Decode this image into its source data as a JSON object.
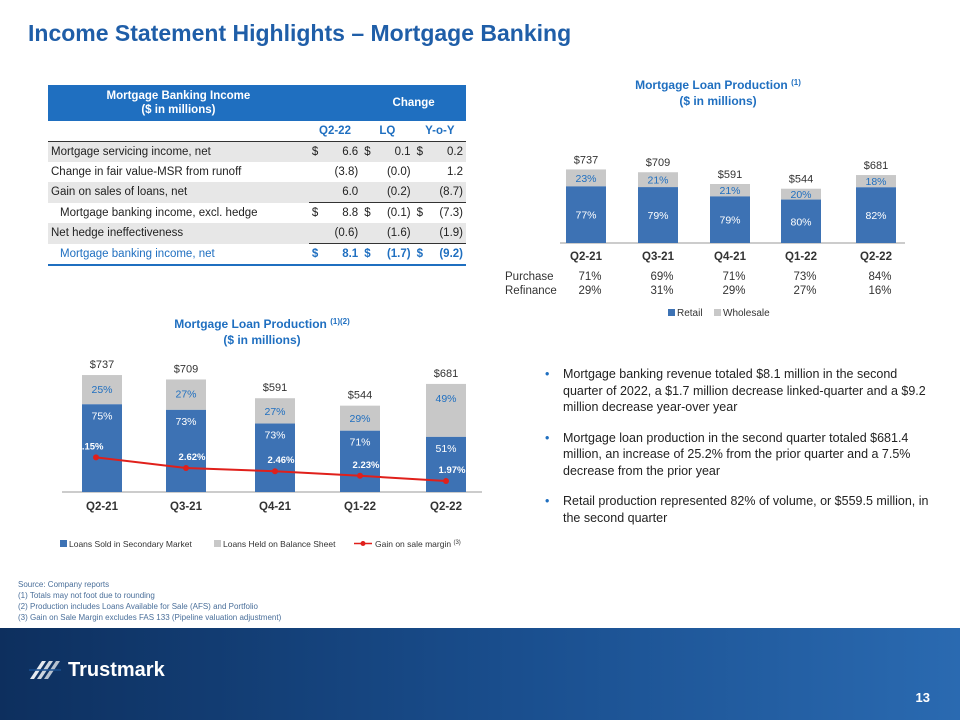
{
  "title": "Income Statement Highlights – Mortgage Banking",
  "table": {
    "header_title_line1": "Mortgage Banking Income",
    "header_title_line2": "($ in millions)",
    "header_change": "Change",
    "col_q": "Q2-22",
    "col_lq": "LQ",
    "col_yoy": "Y-o-Y",
    "rows": [
      {
        "label": "Mortgage servicing income, net",
        "d1": "$",
        "q": "6.6",
        "d2": "$",
        "lq": "0.1",
        "d3": "$",
        "yoy": "0.2"
      },
      {
        "label": "Change in fair value-MSR from runoff",
        "d1": "",
        "q": "(3.8)",
        "d2": "",
        "lq": "(0.0)",
        "d3": "",
        "yoy": "1.2"
      },
      {
        "label": "Gain on sales of loans, net",
        "d1": "",
        "q": "6.0",
        "d2": "",
        "lq": "(0.2)",
        "d3": "",
        "yoy": "(8.7)"
      },
      {
        "label": "Mortgage banking income, excl. hedge",
        "d1": "$",
        "q": "8.8",
        "d2": "$",
        "lq": "(0.1)",
        "d3": "$",
        "yoy": "(7.3)"
      },
      {
        "label": "Net hedge ineffectiveness",
        "d1": "",
        "q": "(0.6)",
        "d2": "",
        "lq": "(1.6)",
        "d3": "",
        "yoy": "(1.9)"
      },
      {
        "label": "Mortgage banking income, net",
        "d1": "$",
        "q": "8.1",
        "d2": "$",
        "lq": "(1.7)",
        "d3": "$",
        "yoy": "(9.2)"
      }
    ]
  },
  "chart_data": [
    {
      "type": "bar",
      "title": "Mortgage Loan Production",
      "title_sup": "(1)",
      "subtitle": "($ in millions)",
      "categories": [
        "Q2-21",
        "Q3-21",
        "Q4-21",
        "Q1-22",
        "Q2-22"
      ],
      "totals": [
        "$737",
        "$709",
        "$591",
        "$544",
        "$681"
      ],
      "total_values": [
        737,
        709,
        591,
        544,
        681
      ],
      "series": [
        {
          "name": "Retail",
          "values": [
            77,
            79,
            79,
            80,
            82
          ],
          "labels": [
            "77%",
            "79%",
            "79%",
            "80%",
            "82%"
          ],
          "color": "#3d72b4"
        },
        {
          "name": "Wholesale",
          "values": [
            23,
            21,
            21,
            20,
            18
          ],
          "labels": [
            "23%",
            "21%",
            "21%",
            "20%",
            "18%"
          ],
          "color": "#c8c8c8"
        }
      ],
      "purchase_label": "Purchase",
      "refinance_label": "Refinance",
      "purchase": [
        "71%",
        "69%",
        "71%",
        "73%",
        "84%"
      ],
      "refinance": [
        "29%",
        "31%",
        "29%",
        "27%",
        "16%"
      ]
    },
    {
      "type": "bar",
      "title": "Mortgage Loan Production",
      "title_sup": "(1)(2)",
      "subtitle": "($ in millions)",
      "categories": [
        "Q2-21",
        "Q3-21",
        "Q4-21",
        "Q1-22",
        "Q2-22"
      ],
      "totals": [
        "$737",
        "$709",
        "$591",
        "$544",
        "$681"
      ],
      "total_values": [
        737,
        709,
        591,
        544,
        681
      ],
      "series": [
        {
          "name": "Loans Sold in Secondary Market",
          "values": [
            75,
            73,
            73,
            71,
            51
          ],
          "labels": [
            "75%",
            "73%",
            "73%",
            "71%",
            "51%"
          ],
          "color": "#3d72b4"
        },
        {
          "name": "Loans Held on Balance Sheet",
          "values": [
            25,
            27,
            27,
            29,
            49
          ],
          "labels": [
            "25%",
            "27%",
            "27%",
            "29%",
            "49%"
          ],
          "color": "#c8c8c8"
        }
      ],
      "line": {
        "name": "Gain on sale margin",
        "name_sup": "(3)",
        "values": [
          3.15,
          2.62,
          2.46,
          2.23,
          1.97
        ],
        "labels": [
          "3.15%",
          "2.62%",
          "2.46%",
          "2.23%",
          "1.97%"
        ],
        "color": "#e0201b"
      }
    }
  ],
  "bullets": [
    "Mortgage banking revenue totaled $8.1 million in the second quarter of 2022, a $1.7 million decrease linked-quarter and a $9.2 million decrease year-over year",
    "Mortgage loan production in the second quarter totaled $681.4 million, an increase of 25.2% from the prior quarter and a 7.5% decrease from the prior year",
    "Retail production represented 82% of volume, or $559.5 million, in the second quarter"
  ],
  "notes": [
    "Source: Company reports",
    "(1) Totals may not foot due to rounding",
    "(2) Production includes Loans Available for Sale (AFS) and Portfolio",
    "(3) Gain on Sale Margin excludes FAS 133 (Pipeline valuation adjustment)"
  ],
  "brand": "Trustmark",
  "page_number": "13",
  "colors": {
    "accent": "#1f6fc0",
    "footer": "#1a4f8f"
  }
}
